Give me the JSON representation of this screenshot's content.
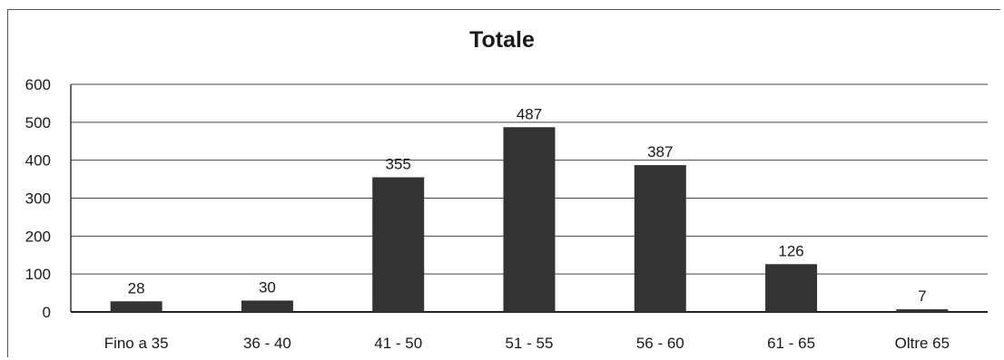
{
  "chart_data": {
    "type": "bar",
    "title": "Totale",
    "xlabel": "",
    "ylabel": "",
    "categories": [
      "Fino a 35",
      "36 - 40",
      "41 - 50",
      "51 - 55",
      "56 - 60",
      "61 - 65",
      "Oltre 65"
    ],
    "values": [
      28,
      30,
      355,
      487,
      387,
      126,
      7
    ],
    "data_labels": [
      "28",
      "30",
      "355",
      "487",
      "387",
      "126",
      "7"
    ],
    "y_ticks": [
      "0",
      "100",
      "200",
      "300",
      "400",
      "500",
      "600"
    ],
    "ylim": [
      0,
      600
    ],
    "grid": true,
    "legend": "none",
    "bar_color": "#333333"
  }
}
